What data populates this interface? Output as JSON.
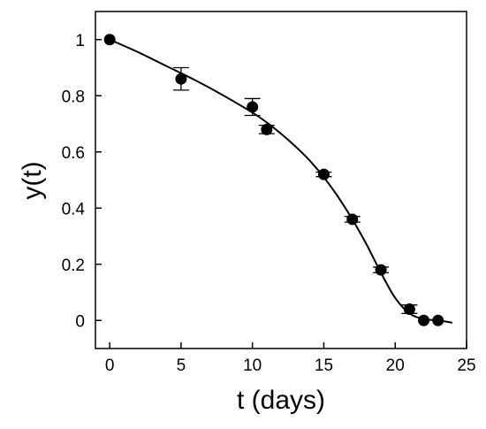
{
  "chart_data": {
    "type": "scatter",
    "title": "",
    "xlabel": "t (days)",
    "ylabel": "y(t)",
    "xlim": [
      -1,
      25
    ],
    "ylim": [
      -0.1,
      1.1
    ],
    "xticks": [
      0,
      5,
      10,
      15,
      20,
      25
    ],
    "yticks": [
      0,
      0.2,
      0.4,
      0.6,
      0.8,
      1
    ],
    "xtick_labels": [
      "0",
      "5",
      "10",
      "15",
      "20",
      "25"
    ],
    "ytick_labels": [
      "0",
      "0.2",
      "0.4",
      "0.6",
      "0.8",
      "1"
    ],
    "grid": false,
    "legend": "none",
    "points": [
      {
        "x": 0,
        "y": 1.0,
        "err": 0
      },
      {
        "x": 5,
        "y": 0.86,
        "err": 0.04
      },
      {
        "x": 10,
        "y": 0.76,
        "err": 0.03
      },
      {
        "x": 11,
        "y": 0.68,
        "err": 0.015
      },
      {
        "x": 15,
        "y": 0.52,
        "err": 0.008
      },
      {
        "x": 17,
        "y": 0.36,
        "err": 0.01
      },
      {
        "x": 19,
        "y": 0.18,
        "err": 0.01
      },
      {
        "x": 21,
        "y": 0.04,
        "err": 0.015
      },
      {
        "x": 22,
        "y": 0.0,
        "err": 0
      },
      {
        "x": 23,
        "y": 0.0,
        "err": 0
      }
    ],
    "fit_curve": {
      "x": [
        0,
        2,
        4,
        6,
        8,
        10,
        11,
        12,
        13,
        14,
        15,
        16,
        17,
        18,
        19,
        20,
        21,
        22,
        23,
        24
      ],
      "y": [
        1.0,
        0.955,
        0.905,
        0.855,
        0.8,
        0.74,
        0.705,
        0.665,
        0.62,
        0.57,
        0.51,
        0.44,
        0.36,
        0.27,
        0.17,
        0.08,
        0.025,
        0.005,
        0.0,
        -0.008
      ]
    },
    "colors": {
      "marker": "#000000",
      "line": "#000000",
      "axis": "#000000"
    }
  }
}
